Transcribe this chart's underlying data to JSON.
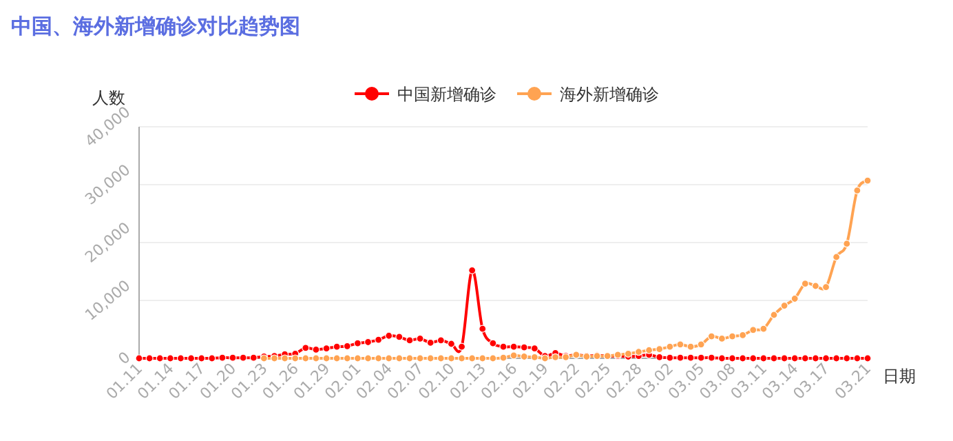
{
  "chart_data": {
    "type": "line",
    "title": "中国、海外新增确诊对比趋势图",
    "xlabel": "日期",
    "ylabel": "人数",
    "categories": [
      "01.11",
      null,
      null,
      "01.14",
      null,
      null,
      "01.17",
      null,
      null,
      "01.20",
      null,
      null,
      "01.23",
      null,
      null,
      "01.26",
      null,
      null,
      "01.29",
      null,
      null,
      "02.01",
      null,
      null,
      "02.04",
      null,
      null,
      "02.07",
      null,
      null,
      "02.10",
      null,
      null,
      "02.13",
      null,
      null,
      "02.16",
      null,
      null,
      "02.19",
      null,
      null,
      "02.22",
      null,
      null,
      "02.25",
      null,
      null,
      "02.28",
      null,
      null,
      "03.02",
      null,
      null,
      "03.05",
      null,
      null,
      "03.08",
      null,
      null,
      "03.11",
      null,
      null,
      "03.14",
      null,
      null,
      "03.17",
      null,
      null,
      null,
      "03.21"
    ],
    "series": [
      {
        "name": "中国新增确诊",
        "color": "#ff0000",
        "values": [
          0,
          0,
          0,
          0,
          0,
          0,
          0,
          0,
          100,
          100,
          100,
          100,
          300,
          400,
          700,
          800,
          1800,
          1500,
          1700,
          2000,
          2100,
          2600,
          2800,
          3200,
          3900,
          3700,
          3100,
          3400,
          2700,
          3100,
          2500,
          2000,
          15200,
          5100,
          2600,
          2000,
          2000,
          1900,
          1700,
          400,
          900,
          400,
          600,
          400,
          500,
          400,
          400,
          300,
          400,
          600,
          200,
          100,
          100,
          100,
          100,
          100,
          0,
          0,
          0,
          0,
          0,
          0,
          0,
          0,
          0,
          0,
          0,
          0,
          0,
          0,
          0
        ]
      },
      {
        "name": "海外新增确诊",
        "color": "#ffa352",
        "values": [
          null,
          null,
          null,
          null,
          null,
          null,
          null,
          null,
          null,
          null,
          null,
          null,
          0,
          0,
          0,
          0,
          0,
          0,
          0,
          0,
          0,
          0,
          0,
          0,
          0,
          0,
          0,
          0,
          0,
          0,
          0,
          0,
          0,
          0,
          0,
          100,
          500,
          300,
          200,
          0,
          200,
          200,
          600,
          300,
          400,
          400,
          600,
          800,
          1100,
          1400,
          1600,
          2000,
          2400,
          2000,
          2400,
          3800,
          3400,
          3800,
          4000,
          4900,
          5100,
          7500,
          9100,
          10300,
          12900,
          12500,
          12300,
          17500,
          19800,
          29000,
          30700
        ]
      }
    ],
    "ylim": [
      0,
      40000
    ],
    "yticks": [
      0,
      {
        "value": 10000,
        "label": "10,000"
      },
      {
        "value": 20000,
        "label": "20,000"
      },
      {
        "value": 30000,
        "label": "30,000"
      },
      {
        "value": 40000,
        "label": "40,000"
      }
    ],
    "grid": "y",
    "legend": "top",
    "marker": "circle",
    "line_style": "solid"
  }
}
